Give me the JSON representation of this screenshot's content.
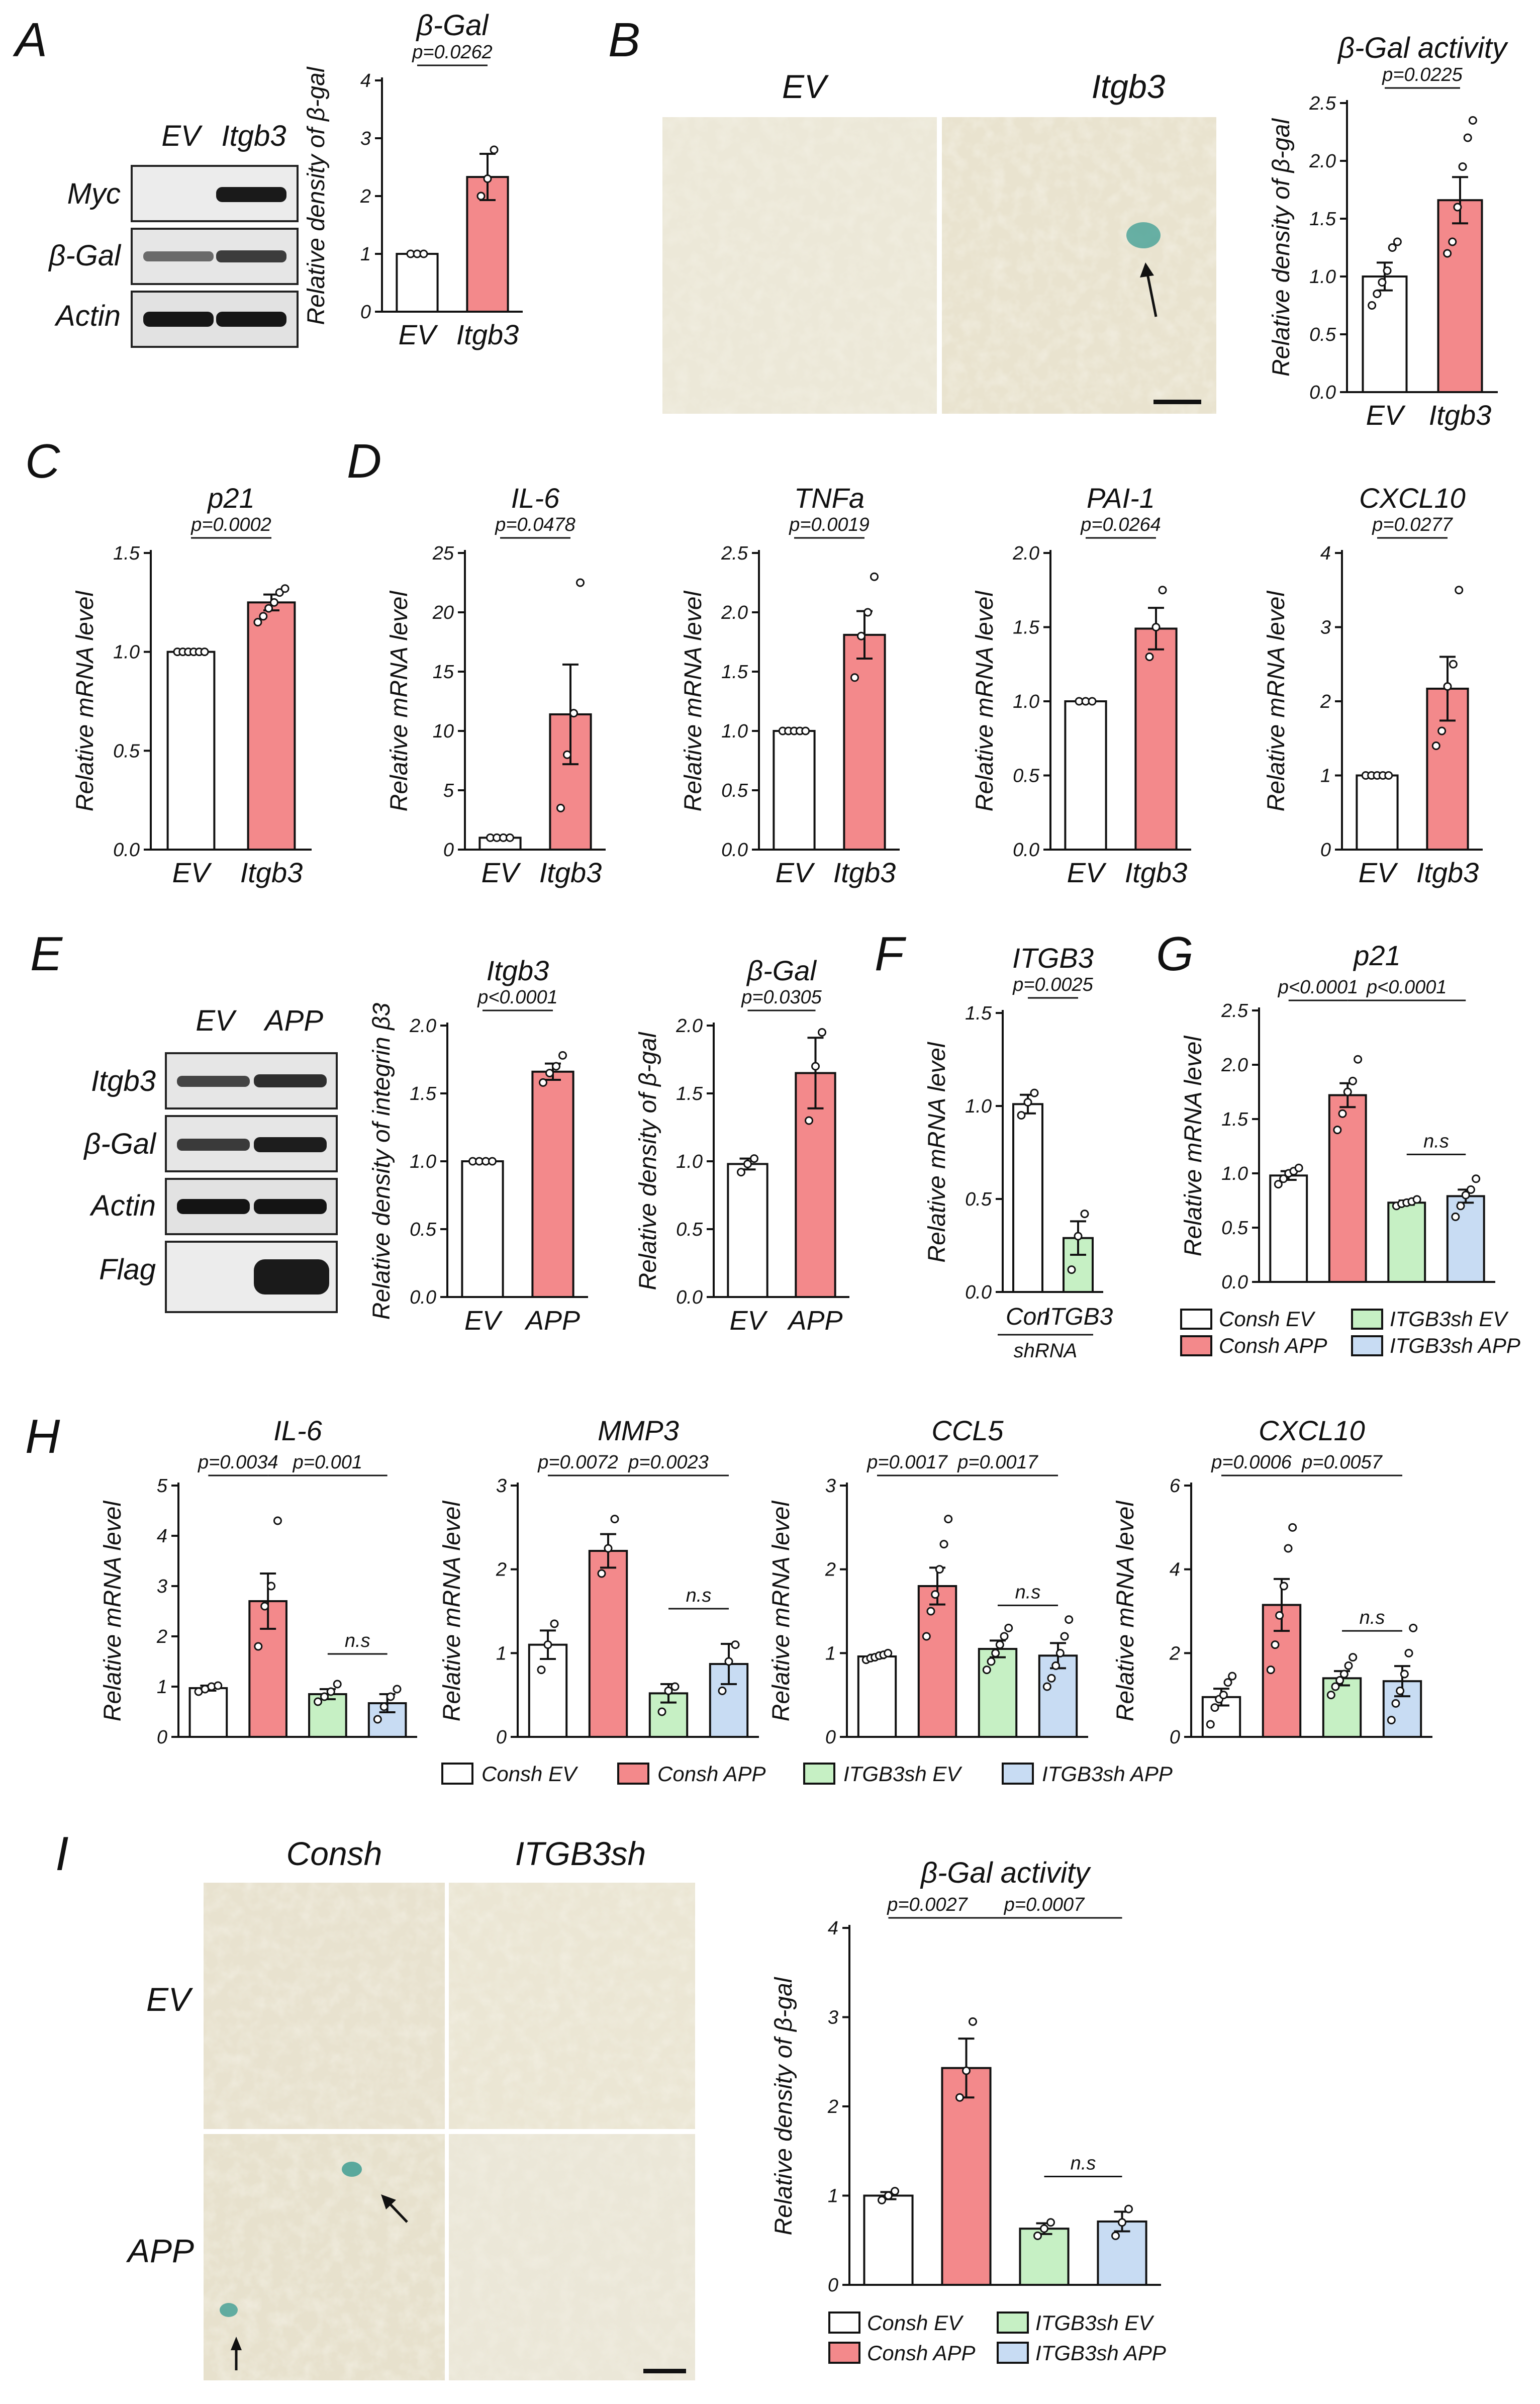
{
  "colors": {
    "ev": "#ffffff",
    "treated": "#f3898b",
    "sh_ev": "#c6f0c4",
    "sh_app": "#c8dcf3",
    "axis": "#111111",
    "blot_bg": "#e6e6e6",
    "microscopy": "#ece8d8"
  },
  "panels": {
    "A": "A",
    "B": "B",
    "C": "C",
    "D": "D",
    "E": "E",
    "F": "F",
    "G": "G",
    "H": "H",
    "I": "I"
  },
  "blots": {
    "A": {
      "lanes": [
        "EV",
        "Itgb3"
      ],
      "rows": [
        "Myc",
        "β-Gal",
        "Actin"
      ]
    },
    "E": {
      "lanes": [
        "EV",
        "APP"
      ],
      "rows": [
        "Itgb3",
        "β-Gal",
        "Actin",
        "Flag"
      ]
    }
  },
  "micrographs": {
    "B": {
      "columns": [
        "EV",
        "Itgb3"
      ]
    },
    "I": {
      "columns": [
        "Consh",
        "ITGB3sh"
      ],
      "rows": [
        "EV",
        "APP"
      ]
    }
  },
  "shrna_label": "shRNA",
  "legend": [
    "Consh EV",
    "Consh APP",
    "ITGB3sh EV",
    "ITGB3sh APP"
  ],
  "chart_data": [
    {
      "id": "A_bgal",
      "type": "bar",
      "title": "β-Gal",
      "ylabel": "Relative density of β-gal",
      "categories": [
        "EV",
        "Itgb3"
      ],
      "values": [
        1.0,
        2.33
      ],
      "errors": [
        0.02,
        0.4
      ],
      "points": [
        [
          1.0,
          1.0,
          1.0
        ],
        [
          2.0,
          2.3,
          2.8
        ]
      ],
      "ylim": [
        0,
        4
      ],
      "yticks": [
        "0",
        "1",
        "2",
        "3",
        "4"
      ],
      "comparisons": [
        {
          "from": 0,
          "to": 1,
          "label": "p=0.0262"
        }
      ]
    },
    {
      "id": "B_bgal",
      "type": "bar",
      "title": "β-Gal activity",
      "ylabel": "Relative density of β-gal",
      "categories": [
        "EV",
        "Itgb3"
      ],
      "values": [
        1.0,
        1.66
      ],
      "errors": [
        0.12,
        0.2
      ],
      "points": [
        [
          0.75,
          0.85,
          0.95,
          1.05,
          1.25,
          1.3
        ],
        [
          1.2,
          1.3,
          1.6,
          1.95,
          2.2,
          2.35
        ]
      ],
      "ylim": [
        0,
        2.5
      ],
      "yticks": [
        "0.0",
        "0.5",
        "1.0",
        "1.5",
        "2.0",
        "2.5"
      ],
      "comparisons": [
        {
          "from": 0,
          "to": 1,
          "label": "p=0.0225"
        }
      ]
    },
    {
      "id": "C_p21",
      "type": "bar",
      "title": "p21",
      "ylabel": "Relative mRNA level",
      "categories": [
        "EV",
        "Itgb3"
      ],
      "values": [
        1.0,
        1.25
      ],
      "errors": [
        0.005,
        0.04
      ],
      "points": [
        [
          1.0,
          1.0,
          1.0,
          1.0,
          1.0,
          1.0
        ],
        [
          1.15,
          1.18,
          1.22,
          1.25,
          1.3,
          1.32
        ]
      ],
      "ylim": [
        0,
        1.5
      ],
      "yticks": [
        "0.0",
        "0.5",
        "1.0",
        "1.5"
      ],
      "comparisons": [
        {
          "from": 0,
          "to": 1,
          "label": "p=0.0002"
        }
      ]
    },
    {
      "id": "D_il6",
      "type": "bar",
      "title": "IL-6",
      "ylabel": "Relative mRNA level",
      "categories": [
        "EV",
        "Itgb3"
      ],
      "values": [
        1.0,
        11.4
      ],
      "errors": [
        0.1,
        4.2
      ],
      "points": [
        [
          1.0,
          1.0,
          1.0,
          1.0
        ],
        [
          3.5,
          8.0,
          11.5,
          22.5
        ]
      ],
      "ylim": [
        0,
        25
      ],
      "yticks": [
        "0",
        "5",
        "10",
        "15",
        "20",
        "25"
      ],
      "comparisons": [
        {
          "from": 0,
          "to": 1,
          "label": "p=0.0478"
        }
      ]
    },
    {
      "id": "D_tnfa",
      "type": "bar",
      "title": "TNFa",
      "ylabel": "Relative mRNA level",
      "categories": [
        "EV",
        "Itgb3"
      ],
      "values": [
        1.0,
        1.81
      ],
      "errors": [
        0.01,
        0.2
      ],
      "points": [
        [
          1.0,
          1.0,
          1.0,
          1.0,
          1.0
        ],
        [
          1.45,
          1.8,
          2.0,
          2.3
        ]
      ],
      "ylim": [
        0,
        2.5
      ],
      "yticks": [
        "0.0",
        "0.5",
        "1.0",
        "1.5",
        "2.0",
        "2.5"
      ],
      "comparisons": [
        {
          "from": 0,
          "to": 1,
          "label": "p=0.0019"
        }
      ]
    },
    {
      "id": "D_pai1",
      "type": "bar",
      "title": "PAI-1",
      "ylabel": "Relative mRNA level",
      "categories": [
        "EV",
        "Itgb3"
      ],
      "values": [
        1.0,
        1.49
      ],
      "errors": [
        0.005,
        0.14
      ],
      "points": [
        [
          1.0,
          1.0,
          1.0
        ],
        [
          1.3,
          1.5,
          1.75
        ]
      ],
      "ylim": [
        0,
        2.0
      ],
      "yticks": [
        "0.0",
        "0.5",
        "1.0",
        "1.5",
        "2.0"
      ],
      "comparisons": [
        {
          "from": 0,
          "to": 1,
          "label": "p=0.0264"
        }
      ]
    },
    {
      "id": "D_cxcl10",
      "type": "bar",
      "title": "CXCL10",
      "ylabel": "Relative mRNA level",
      "categories": [
        "EV",
        "Itgb3"
      ],
      "values": [
        1.0,
        2.17
      ],
      "errors": [
        0.01,
        0.43
      ],
      "points": [
        [
          1.0,
          1.0,
          1.0,
          1.0,
          1.0
        ],
        [
          1.4,
          1.6,
          2.2,
          2.5,
          3.5
        ]
      ],
      "ylim": [
        0,
        4
      ],
      "yticks": [
        "0",
        "1",
        "2",
        "3",
        "4"
      ],
      "comparisons": [
        {
          "from": 0,
          "to": 1,
          "label": "p=0.0277"
        }
      ]
    },
    {
      "id": "E_itgb3",
      "type": "bar",
      "title": "Itgb3",
      "ylabel": "Relative density of integrin β3",
      "categories": [
        "EV",
        "APP"
      ],
      "values": [
        1.0,
        1.66
      ],
      "errors": [
        0.005,
        0.06
      ],
      "points": [
        [
          1.0,
          1.0,
          1.0,
          1.0
        ],
        [
          1.58,
          1.65,
          1.7,
          1.78
        ]
      ],
      "ylim": [
        0,
        2.0
      ],
      "yticks": [
        "0.0",
        "0.5",
        "1.0",
        "1.5",
        "2.0"
      ],
      "comparisons": [
        {
          "from": 0,
          "to": 1,
          "label": "p<0.0001"
        }
      ]
    },
    {
      "id": "E_bgal",
      "type": "bar",
      "title": "β-Gal",
      "ylabel": "Relative density of β-gal",
      "categories": [
        "EV",
        "APP"
      ],
      "values": [
        0.98,
        1.65
      ],
      "errors": [
        0.04,
        0.26
      ],
      "points": [
        [
          0.92,
          0.98,
          1.02
        ],
        [
          1.3,
          1.7,
          1.95
        ]
      ],
      "ylim": [
        0,
        2.0
      ],
      "yticks": [
        "0.0",
        "0.5",
        "1.0",
        "1.5",
        "2.0"
      ],
      "comparisons": [
        {
          "from": 0,
          "to": 1,
          "label": "p=0.0305"
        }
      ]
    },
    {
      "id": "F_itgb3",
      "type": "bar",
      "title": "ITGB3",
      "ylabel": "Relative mRNA level",
      "categories": [
        "Con",
        "ITGB3"
      ],
      "values": [
        1.01,
        0.29
      ],
      "errors": [
        0.05,
        0.09
      ],
      "points": [
        [
          0.95,
          1.02,
          1.07
        ],
        [
          0.12,
          0.3,
          0.42
        ]
      ],
      "ylim": [
        0,
        1.5
      ],
      "yticks": [
        "0.0",
        "0.5",
        "1.0",
        "1.5"
      ],
      "comparisons": [
        {
          "from": 0,
          "to": 1,
          "label": "p=0.0025"
        }
      ]
    },
    {
      "id": "G_p21",
      "type": "bar",
      "title": "p21",
      "ylabel": "Relative mRNA level",
      "categories": [
        "Consh EV",
        "Consh APP",
        "ITGB3sh EV",
        "ITGB3sh APP"
      ],
      "values": [
        0.98,
        1.72,
        0.73,
        0.79
      ],
      "errors": [
        0.04,
        0.11,
        0.02,
        0.06
      ],
      "points": [
        [
          0.9,
          0.95,
          1.0,
          1.02,
          1.05
        ],
        [
          1.4,
          1.55,
          1.75,
          1.85,
          2.05
        ],
        [
          0.7,
          0.72,
          0.73,
          0.74,
          0.76
        ],
        [
          0.6,
          0.7,
          0.8,
          0.85,
          0.95
        ]
      ],
      "ylim": [
        0,
        2.5
      ],
      "yticks": [
        "0.0",
        "0.5",
        "1.0",
        "1.5",
        "2.0",
        "2.5"
      ],
      "comparisons": [
        {
          "from": 0,
          "to": 1,
          "label": "p<0.0001"
        },
        {
          "from": 1,
          "to": 3,
          "label": "p<0.0001"
        },
        {
          "from": 2,
          "to": 3,
          "label": "n.s"
        }
      ]
    },
    {
      "id": "H_il6",
      "type": "bar",
      "title": "IL-6",
      "ylabel": "Relative mRNA level",
      "categories": [
        "Consh EV",
        "Consh APP",
        "ITGB3sh EV",
        "ITGB3sh APP"
      ],
      "values": [
        0.97,
        2.7,
        0.85,
        0.67
      ],
      "errors": [
        0.05,
        0.55,
        0.1,
        0.18
      ],
      "points": [
        [
          0.9,
          0.95,
          1.0,
          1.02
        ],
        [
          1.8,
          2.6,
          3.0,
          4.3
        ],
        [
          0.7,
          0.8,
          0.9,
          1.05
        ],
        [
          0.35,
          0.6,
          0.8,
          0.95
        ]
      ],
      "ylim": [
        0,
        5
      ],
      "yticks": [
        "0",
        "1",
        "2",
        "3",
        "4",
        "5"
      ],
      "comparisons": [
        {
          "from": 0,
          "to": 1,
          "label": "p=0.0034"
        },
        {
          "from": 1,
          "to": 3,
          "label": "p=0.001"
        },
        {
          "from": 2,
          "to": 3,
          "label": "n.s"
        }
      ]
    },
    {
      "id": "H_mmp3",
      "type": "bar",
      "title": "MMP3",
      "ylabel": "Relative mRNA level",
      "categories": [
        "Consh EV",
        "Consh APP",
        "ITGB3sh EV",
        "ITGB3sh APP"
      ],
      "values": [
        1.1,
        2.22,
        0.52,
        0.87
      ],
      "errors": [
        0.17,
        0.2,
        0.11,
        0.24
      ],
      "points": [
        [
          0.8,
          1.1,
          1.35
        ],
        [
          1.95,
          2.25,
          2.6
        ],
        [
          0.3,
          0.55,
          0.6
        ],
        [
          0.55,
          0.9,
          1.1
        ]
      ],
      "ylim": [
        0,
        3
      ],
      "yticks": [
        "0",
        "1",
        "2",
        "3"
      ],
      "comparisons": [
        {
          "from": 0,
          "to": 1,
          "label": "p=0.0072"
        },
        {
          "from": 1,
          "to": 3,
          "label": "p=0.0023"
        },
        {
          "from": 2,
          "to": 3,
          "label": "n.s"
        }
      ]
    },
    {
      "id": "H_ccl5",
      "type": "bar",
      "title": "CCL5",
      "ylabel": "Relative mRNA level",
      "categories": [
        "Consh EV",
        "Consh APP",
        "ITGB3sh EV",
        "ITGB3sh APP"
      ],
      "values": [
        0.96,
        1.8,
        1.05,
        0.97
      ],
      "errors": [
        0.02,
        0.22,
        0.1,
        0.15
      ],
      "points": [
        [
          0.92,
          0.94,
          0.95,
          0.97,
          0.98,
          1.0
        ],
        [
          1.2,
          1.5,
          1.7,
          2.0,
          2.3,
          2.6
        ],
        [
          0.8,
          0.9,
          1.0,
          1.1,
          1.2,
          1.3
        ],
        [
          0.6,
          0.7,
          0.85,
          1.0,
          1.2,
          1.4
        ]
      ],
      "ylim": [
        0,
        3
      ],
      "yticks": [
        "0",
        "1",
        "2",
        "3"
      ],
      "comparisons": [
        {
          "from": 0,
          "to": 1,
          "label": "p=0.0017"
        },
        {
          "from": 1,
          "to": 3,
          "label": "p=0.0017"
        },
        {
          "from": 2,
          "to": 3,
          "label": "n.s"
        }
      ]
    },
    {
      "id": "H_cxcl10",
      "type": "bar",
      "title": "CXCL10",
      "ylabel": "Relative mRNA level",
      "categories": [
        "Consh EV",
        "Consh APP",
        "ITGB3sh EV",
        "ITGB3sh APP"
      ],
      "values": [
        0.95,
        3.15,
        1.4,
        1.33
      ],
      "errors": [
        0.2,
        0.62,
        0.17,
        0.36
      ],
      "points": [
        [
          0.3,
          0.7,
          0.9,
          1.0,
          1.3,
          1.45
        ],
        [
          1.6,
          2.2,
          2.9,
          3.6,
          4.5,
          5.0
        ],
        [
          1.0,
          1.2,
          1.35,
          1.5,
          1.7,
          1.9
        ],
        [
          0.4,
          0.8,
          1.1,
          1.5,
          2.0,
          2.6
        ]
      ],
      "ylim": [
        0,
        6
      ],
      "yticks": [
        "0",
        "2",
        "4",
        "6"
      ],
      "comparisons": [
        {
          "from": 0,
          "to": 1,
          "label": "p=0.0006"
        },
        {
          "from": 1,
          "to": 3,
          "label": "p=0.0057"
        },
        {
          "from": 2,
          "to": 3,
          "label": "n.s"
        }
      ]
    },
    {
      "id": "I_bgal",
      "type": "bar",
      "title": "β-Gal activity",
      "ylabel": "Relative density of β-gal",
      "categories": [
        "Consh EV",
        "Consh APP",
        "ITGB3sh EV",
        "ITGB3sh APP"
      ],
      "values": [
        1.0,
        2.43,
        0.63,
        0.71
      ],
      "errors": [
        0.04,
        0.33,
        0.06,
        0.11
      ],
      "points": [
        [
          0.95,
          1.0,
          1.05
        ],
        [
          2.1,
          2.4,
          2.95
        ],
        [
          0.55,
          0.63,
          0.7
        ],
        [
          0.55,
          0.7,
          0.85
        ]
      ],
      "ylim": [
        0,
        4
      ],
      "yticks": [
        "0",
        "1",
        "2",
        "3",
        "4"
      ],
      "comparisons": [
        {
          "from": 0,
          "to": 1,
          "label": "p=0.0027"
        },
        {
          "from": 1,
          "to": 3,
          "label": "p=0.0007"
        },
        {
          "from": 2,
          "to": 3,
          "label": "n.s"
        }
      ]
    }
  ]
}
